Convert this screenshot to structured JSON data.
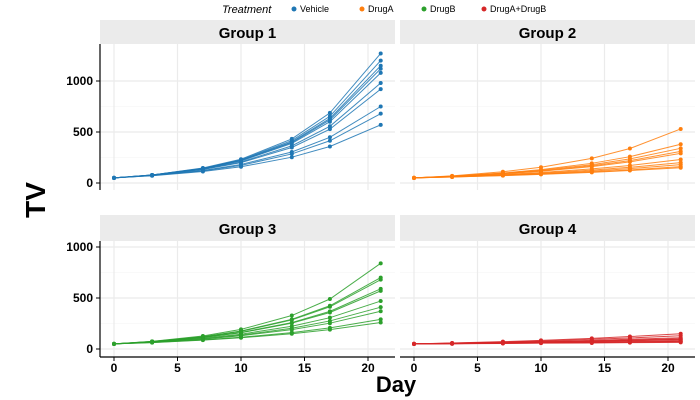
{
  "chart_data": {
    "type": "line",
    "xlabel": "Day",
    "ylabel": "TV",
    "x": [
      0,
      3,
      7,
      10,
      14,
      17,
      21
    ],
    "xticks": [
      0,
      5,
      10,
      15,
      20
    ],
    "yticks": [
      0,
      500,
      1000
    ],
    "grid": true,
    "legend": {
      "title": "Treatment",
      "placement": "top",
      "entries": [
        {
          "label": "Vehicle",
          "color": "#1f77b4"
        },
        {
          "label": "DrugA",
          "color": "#ff7f0e"
        },
        {
          "label": "DrugB",
          "color": "#2ca02c"
        },
        {
          "label": "DrugA+DrugB",
          "color": "#d62728"
        }
      ]
    },
    "panels": [
      {
        "title": "Group 1",
        "treatment": "Vehicle",
        "color": "#1f77b4",
        "series": [
          [
            50,
            79,
            147,
            233,
            432,
            687,
            1270
          ],
          [
            50,
            79,
            144,
            227,
            416,
            654,
            1200
          ],
          [
            50,
            78,
            142,
            223,
            404,
            633,
            1150
          ],
          [
            50,
            78,
            141,
            220,
            397,
            619,
            1120
          ],
          [
            50,
            77,
            139,
            216,
            388,
            601,
            1080
          ],
          [
            50,
            76,
            135,
            206,
            364,
            556,
            980
          ],
          [
            50,
            76,
            132,
            200,
            348,
            528,
            920
          ],
          [
            50,
            74,
            123,
            182,
            304,
            448,
            750
          ],
          [
            50,
            73,
            119,
            173,
            285,
            414,
            680
          ],
          [
            50,
            71,
            113,
            159,
            253,
            358,
            570
          ]
        ]
      },
      {
        "title": "Group 2",
        "treatment": "DrugA",
        "color": "#ff7f0e",
        "series": [
          [
            50,
            70,
            110,
            154,
            241,
            338,
            530
          ],
          [
            50,
            67,
            98,
            131,
            193,
            258,
            380
          ],
          [
            50,
            66,
            95,
            125,
            179,
            236,
            340
          ],
          [
            50,
            65,
            92,
            119,
            169,
            219,
            310
          ],
          [
            50,
            64,
            90,
            115,
            161,
            207,
            290
          ],
          [
            50,
            62,
            83,
            103,
            138,
            172,
            230
          ],
          [
            50,
            61,
            79,
            97,
            126,
            154,
            200
          ],
          [
            50,
            60,
            77,
            92,
            117,
            141,
            180
          ],
          [
            50,
            59,
            74,
            87,
            109,
            128,
            160
          ],
          [
            50,
            59,
            72,
            84,
            104,
            122,
            150
          ]
        ]
      },
      {
        "title": "Group 3",
        "treatment": "DrugB",
        "color": "#2ca02c",
        "series": [
          [
            50,
            75,
            128,
            192,
            328,
            490,
            840
          ],
          [
            50,
            73,
            120,
            176,
            291,
            424,
            700
          ],
          [
            50,
            73,
            119,
            173,
            285,
            414,
            680
          ],
          [
            50,
            71,
            114,
            162,
            259,
            369,
            590
          ],
          [
            50,
            71,
            113,
            159,
            253,
            358,
            570
          ],
          [
            50,
            69,
            106,
            145,
            223,
            307,
            470
          ],
          [
            50,
            67,
            101,
            136,
            203,
            275,
            410
          ],
          [
            50,
            66,
            97,
            130,
            190,
            253,
            370
          ],
          [
            50,
            64,
            90,
            115,
            161,
            207,
            290
          ],
          [
            50,
            63,
            87,
            110,
            150,
            190,
            260
          ]
        ]
      },
      {
        "title": "Group 4",
        "treatment": "DrugA+DrugB",
        "color": "#d62728",
        "series": [
          [
            50,
            59,
            72,
            84,
            104,
            122,
            150
          ],
          [
            50,
            57,
            69,
            79,
            95,
            108,
            130
          ],
          [
            50,
            56,
            65,
            73,
            85,
            95,
            110
          ],
          [
            50,
            55,
            63,
            70,
            79,
            88,
            100
          ],
          [
            50,
            55,
            62,
            68,
            77,
            84,
            95
          ],
          [
            50,
            54,
            61,
            66,
            74,
            81,
            90
          ],
          [
            50,
            53,
            58,
            63,
            68,
            73,
            80
          ],
          [
            50,
            53,
            57,
            61,
            66,
            69,
            75
          ],
          [
            50,
            52,
            56,
            59,
            63,
            66,
            70
          ],
          [
            50,
            52,
            54,
            57,
            59,
            62,
            65
          ]
        ]
      }
    ]
  }
}
